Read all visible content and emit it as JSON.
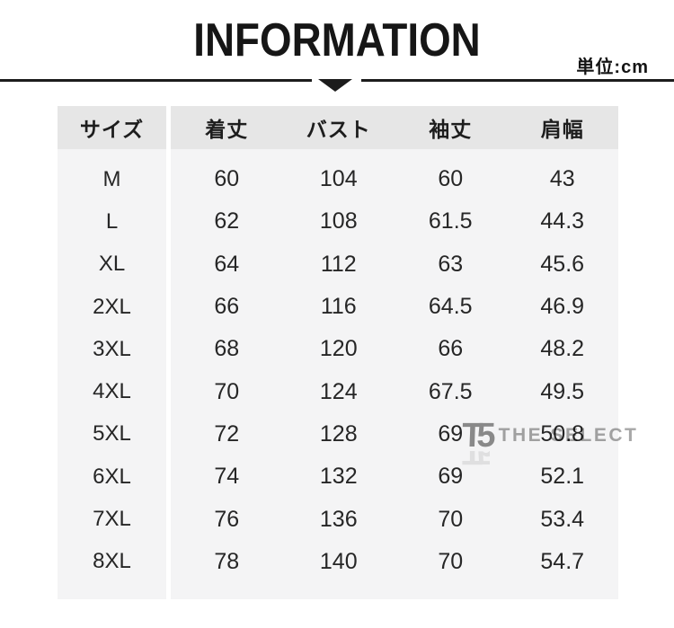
{
  "header": {
    "title": "INFORMATION",
    "unit_label": "単位:cm"
  },
  "watermark": {
    "monogram": "T5",
    "brand_text": "THE SELECT"
  },
  "icons": {
    "triangle_down": "▼",
    "logo_monogram": "TS"
  },
  "colors": {
    "line_dark": "#1c1c1c",
    "header_bg": "#e6e6e6",
    "body_bg": "#f4f4f5",
    "text_dark": "#262626",
    "watermark_gray": "#a0a0a0"
  },
  "chart_data": {
    "type": "table",
    "title": "INFORMATION",
    "unit": "cm",
    "columns": [
      "サイズ",
      "着丈",
      "バスト",
      "袖丈",
      "肩幅"
    ],
    "rows": [
      [
        "M",
        "60",
        "104",
        "60",
        "43"
      ],
      [
        "L",
        "62",
        "108",
        "61.5",
        "44.3"
      ],
      [
        "XL",
        "64",
        "112",
        "63",
        "45.6"
      ],
      [
        "2XL",
        "66",
        "116",
        "64.5",
        "46.9"
      ],
      [
        "3XL",
        "68",
        "120",
        "66",
        "48.2"
      ],
      [
        "4XL",
        "70",
        "124",
        "67.5",
        "49.5"
      ],
      [
        "5XL",
        "72",
        "128",
        "69",
        "50.8"
      ],
      [
        "6XL",
        "74",
        "132",
        "69",
        "52.1"
      ],
      [
        "7XL",
        "76",
        "136",
        "70",
        "53.4"
      ],
      [
        "8XL",
        "78",
        "140",
        "70",
        "54.7"
      ]
    ]
  }
}
